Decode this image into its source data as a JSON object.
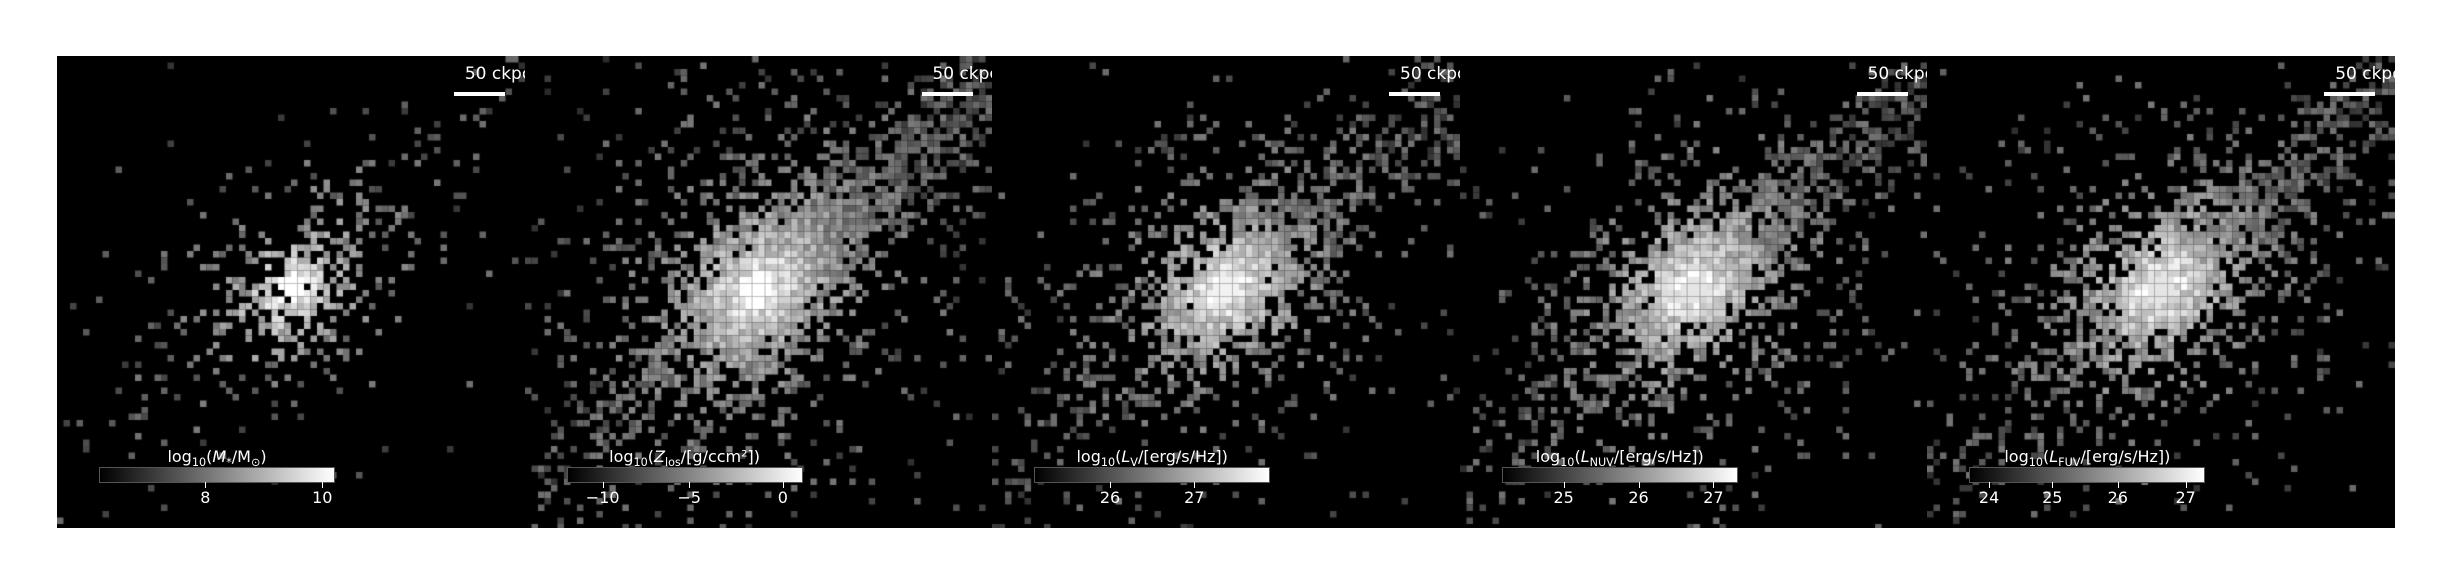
{
  "scale_bar_label": "50 ckpc",
  "panels": [
    {
      "id": "stellar-mass",
      "colorbar": {
        "prefix": "log",
        "base": "10",
        "open": "(",
        "var": "M",
        "var_sub": "*",
        "rest": "/M",
        "rest_sub": "⊙",
        "close": ")"
      },
      "ticks": [
        {
          "label": "8",
          "pos": 0.45
        },
        {
          "label": "10",
          "pos": 0.95
        }
      ],
      "image": {
        "core_brightness": 1.0,
        "halo_extent": 0.45,
        "sparse_density": 0.25
      }
    },
    {
      "id": "metallicity",
      "colorbar": {
        "prefix": "log",
        "base": "10",
        "open": "(",
        "var": "Z",
        "var_sub": "los",
        "rest": "/[g/ccm²]",
        "rest_sub": "",
        "close": ")"
      },
      "ticks": [
        {
          "label": "−10",
          "pos": 0.15
        },
        {
          "label": "−5",
          "pos": 0.52
        },
        {
          "label": "0",
          "pos": 0.92
        }
      ],
      "image": {
        "core_brightness": 1.0,
        "halo_extent": 0.85,
        "sparse_density": 0.75
      }
    },
    {
      "id": "v-band",
      "colorbar": {
        "prefix": "log",
        "base": "10",
        "open": "(",
        "var": "L",
        "var_sub": "V",
        "rest": "/[erg/s/Hz]",
        "rest_sub": "",
        "close": ")"
      },
      "ticks": [
        {
          "label": "26",
          "pos": 0.32
        },
        {
          "label": "27",
          "pos": 0.68
        }
      ],
      "image": {
        "core_brightness": 0.95,
        "halo_extent": 0.7,
        "sparse_density": 0.55
      }
    },
    {
      "id": "nuv",
      "colorbar": {
        "prefix": "log",
        "base": "10",
        "open": "(",
        "var": "L",
        "var_sub": "NUV",
        "rest": "/[erg/s/Hz]",
        "rest_sub": "",
        "close": ")"
      },
      "ticks": [
        {
          "label": "25",
          "pos": 0.26
        },
        {
          "label": "26",
          "pos": 0.58
        },
        {
          "label": "27",
          "pos": 0.9
        }
      ],
      "image": {
        "core_brightness": 0.9,
        "halo_extent": 0.75,
        "sparse_density": 0.6
      }
    },
    {
      "id": "fuv",
      "colorbar": {
        "prefix": "log",
        "base": "10",
        "open": "(",
        "var": "L",
        "var_sub": "FUV",
        "rest": "/[erg/s/Hz]",
        "rest_sub": "",
        "close": ")"
      },
      "ticks": [
        {
          "label": "24",
          "pos": 0.08
        },
        {
          "label": "25",
          "pos": 0.35
        },
        {
          "label": "26",
          "pos": 0.63
        },
        {
          "label": "27",
          "pos": 0.92
        }
      ],
      "image": {
        "core_brightness": 0.9,
        "halo_extent": 0.75,
        "sparse_density": 0.6
      }
    }
  ]
}
